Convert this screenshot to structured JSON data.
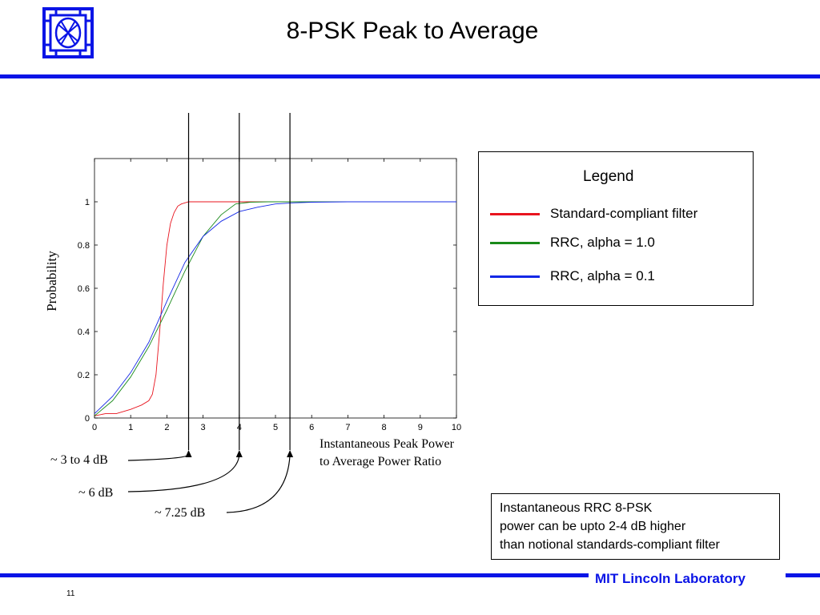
{
  "slide": {
    "title": "8-PSK Peak to Average",
    "footer_lab": "MIT Lincoln Laboratory",
    "page_number": "11"
  },
  "legend": {
    "title": "Legend",
    "items": [
      {
        "label": "Standard-compliant filter",
        "color": "#e8141e"
      },
      {
        "label": "RRC, alpha = 1.0",
        "color": "#1a8a1a"
      },
      {
        "label": "RRC, alpha = 0.1",
        "color": "#1428e6"
      }
    ]
  },
  "annotations": {
    "a1": "~ 3 to 4 dB",
    "a2": "~ 6 dB",
    "a3": "~ 7.25 dB"
  },
  "note": {
    "lines": [
      "Instantaneous RRC 8-PSK",
      "power can be upto 2-4 dB higher",
      "than notional standards-compliant filter"
    ]
  },
  "chart_data": {
    "type": "line",
    "title": "",
    "xlabel_lines": [
      "Instantaneous Peak Power",
      "to Average Power Ratio"
    ],
    "ylabel": "Probability",
    "xlim": [
      0,
      10
    ],
    "ylim": [
      0,
      1.2
    ],
    "x_ticks": [
      "0",
      "1",
      "2",
      "3",
      "4",
      "5",
      "6",
      "7",
      "8",
      "9",
      "10"
    ],
    "y_ticks": [
      "0",
      "0.2",
      "0.4",
      "0.6",
      "0.8",
      "1"
    ],
    "grid": false,
    "series": [
      {
        "name": "Standard-compliant filter",
        "color": "#e8141e",
        "x": [
          0,
          0.3,
          0.6,
          1.0,
          1.3,
          1.5,
          1.6,
          1.7,
          1.8,
          1.9,
          2.0,
          2.1,
          2.2,
          2.3,
          2.4,
          2.5,
          2.6,
          2.7,
          3.0,
          4.0,
          5.0,
          7.0,
          10.0
        ],
        "y": [
          0.01,
          0.02,
          0.02,
          0.04,
          0.06,
          0.08,
          0.11,
          0.2,
          0.4,
          0.62,
          0.8,
          0.9,
          0.95,
          0.98,
          0.99,
          0.995,
          1.0,
          1.0,
          1.0,
          1.0,
          1.0,
          1.0,
          1.0
        ]
      },
      {
        "name": "RRC, alpha = 1.0",
        "color": "#1a8a1a",
        "x": [
          0,
          0.5,
          1.0,
          1.5,
          2.0,
          2.5,
          3.0,
          3.5,
          3.9,
          4.3,
          4.8,
          5.5,
          6.5,
          8.0,
          10.0
        ],
        "y": [
          0.01,
          0.08,
          0.19,
          0.33,
          0.5,
          0.68,
          0.84,
          0.94,
          0.99,
          0.998,
          1.0,
          1.0,
          1.0,
          1.0,
          1.0
        ]
      },
      {
        "name": "RRC, alpha = 0.1",
        "color": "#1428e6",
        "x": [
          0,
          0.5,
          1.0,
          1.5,
          2.0,
          2.5,
          3.0,
          3.5,
          4.0,
          4.5,
          5.0,
          5.5,
          6.0,
          7.0,
          8.0,
          10.0
        ],
        "y": [
          0.02,
          0.1,
          0.21,
          0.35,
          0.54,
          0.72,
          0.84,
          0.91,
          0.955,
          0.975,
          0.99,
          0.995,
          0.998,
          1.0,
          1.0,
          1.0
        ]
      }
    ],
    "marker_lines_x": [
      2.6,
      4.0,
      5.4
    ]
  }
}
